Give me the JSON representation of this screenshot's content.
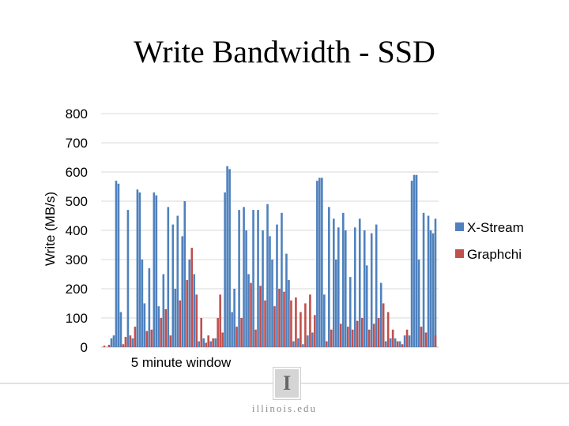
{
  "slide": {
    "title": "Write Bandwidth - SSD",
    "footer": "illinois.edu",
    "logo_letter": "I"
  },
  "chart_data": {
    "type": "bar",
    "title": "",
    "xlabel": "5 minute window",
    "ylabel": "Write (MB/s)",
    "ylim": [
      0,
      800
    ],
    "yticks": [
      0,
      100,
      200,
      300,
      400,
      500,
      600,
      700,
      800
    ],
    "grid": true,
    "legend_position": "right",
    "x_index_range": [
      0,
      140
    ],
    "series": [
      {
        "name": "X-Stream",
        "color": "#4f81bd",
        "points": [
          [
            3,
            30
          ],
          [
            4,
            40
          ],
          [
            5,
            570
          ],
          [
            6,
            560
          ],
          [
            7,
            120
          ],
          [
            10,
            470
          ],
          [
            12,
            30
          ],
          [
            14,
            540
          ],
          [
            15,
            530
          ],
          [
            16,
            300
          ],
          [
            17,
            150
          ],
          [
            19,
            270
          ],
          [
            21,
            530
          ],
          [
            22,
            520
          ],
          [
            23,
            140
          ],
          [
            25,
            250
          ],
          [
            27,
            480
          ],
          [
            29,
            420
          ],
          [
            30,
            200
          ],
          [
            31,
            450
          ],
          [
            33,
            380
          ],
          [
            34,
            500
          ],
          [
            36,
            300
          ],
          [
            38,
            250
          ],
          [
            40,
            20
          ],
          [
            42,
            30
          ],
          [
            45,
            20
          ],
          [
            47,
            30
          ],
          [
            51,
            530
          ],
          [
            52,
            620
          ],
          [
            53,
            610
          ],
          [
            54,
            120
          ],
          [
            55,
            200
          ],
          [
            57,
            470
          ],
          [
            59,
            480
          ],
          [
            60,
            400
          ],
          [
            61,
            250
          ],
          [
            63,
            470
          ],
          [
            65,
            470
          ],
          [
            67,
            400
          ],
          [
            69,
            490
          ],
          [
            70,
            380
          ],
          [
            71,
            300
          ],
          [
            73,
            420
          ],
          [
            75,
            460
          ],
          [
            77,
            320
          ],
          [
            78,
            230
          ],
          [
            80,
            20
          ],
          [
            82,
            30
          ],
          [
            84,
            10
          ],
          [
            86,
            40
          ],
          [
            88,
            50
          ],
          [
            90,
            570
          ],
          [
            91,
            580
          ],
          [
            92,
            580
          ],
          [
            93,
            180
          ],
          [
            95,
            480
          ],
          [
            97,
            440
          ],
          [
            98,
            300
          ],
          [
            99,
            410
          ],
          [
            101,
            460
          ],
          [
            102,
            400
          ],
          [
            104,
            240
          ],
          [
            106,
            410
          ],
          [
            108,
            440
          ],
          [
            110,
            400
          ],
          [
            111,
            280
          ],
          [
            113,
            390
          ],
          [
            115,
            420
          ],
          [
            117,
            220
          ],
          [
            119,
            20
          ],
          [
            121,
            30
          ],
          [
            123,
            30
          ],
          [
            125,
            20
          ],
          [
            127,
            40
          ],
          [
            129,
            40
          ],
          [
            130,
            570
          ],
          [
            131,
            590
          ],
          [
            132,
            590
          ],
          [
            133,
            300
          ],
          [
            135,
            460
          ],
          [
            137,
            450
          ],
          [
            138,
            400
          ],
          [
            139,
            390
          ],
          [
            140,
            440
          ]
        ]
      },
      {
        "name": "Graphchi",
        "color": "#c0504d",
        "points": [
          [
            0,
            5
          ],
          [
            2,
            8
          ],
          [
            8,
            10
          ],
          [
            9,
            35
          ],
          [
            11,
            40
          ],
          [
            13,
            70
          ],
          [
            18,
            55
          ],
          [
            20,
            60
          ],
          [
            24,
            100
          ],
          [
            26,
            130
          ],
          [
            28,
            40
          ],
          [
            32,
            160
          ],
          [
            35,
            230
          ],
          [
            37,
            340
          ],
          [
            39,
            180
          ],
          [
            41,
            100
          ],
          [
            43,
            15
          ],
          [
            44,
            40
          ],
          [
            46,
            30
          ],
          [
            48,
            100
          ],
          [
            49,
            180
          ],
          [
            50,
            50
          ],
          [
            56,
            70
          ],
          [
            58,
            100
          ],
          [
            62,
            220
          ],
          [
            64,
            60
          ],
          [
            66,
            210
          ],
          [
            68,
            160
          ],
          [
            72,
            140
          ],
          [
            74,
            200
          ],
          [
            76,
            190
          ],
          [
            79,
            160
          ],
          [
            81,
            170
          ],
          [
            83,
            120
          ],
          [
            85,
            150
          ],
          [
            87,
            180
          ],
          [
            89,
            110
          ],
          [
            94,
            20
          ],
          [
            96,
            60
          ],
          [
            100,
            80
          ],
          [
            103,
            70
          ],
          [
            105,
            60
          ],
          [
            107,
            90
          ],
          [
            109,
            100
          ],
          [
            112,
            60
          ],
          [
            114,
            80
          ],
          [
            116,
            100
          ],
          [
            118,
            150
          ],
          [
            120,
            120
          ],
          [
            122,
            60
          ],
          [
            124,
            20
          ],
          [
            126,
            10
          ],
          [
            128,
            60
          ],
          [
            134,
            70
          ],
          [
            136,
            50
          ],
          [
            140,
            40
          ]
        ]
      }
    ]
  }
}
